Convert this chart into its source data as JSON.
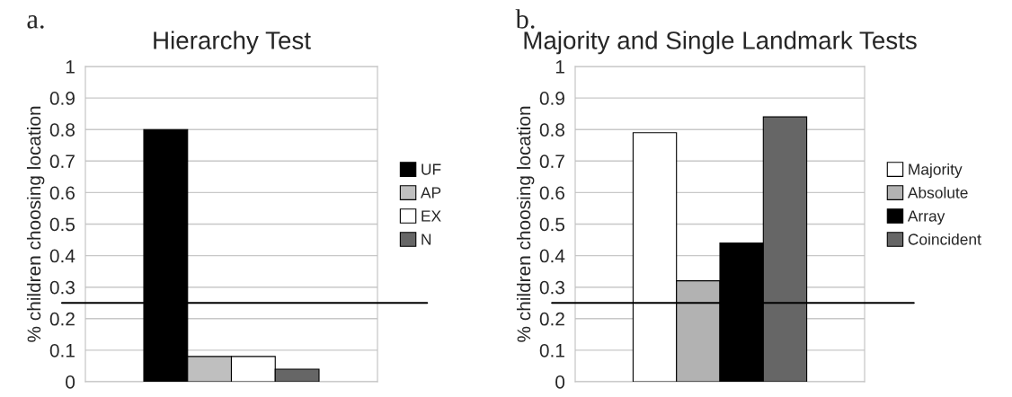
{
  "chart_data": [
    {
      "type": "bar",
      "title": "Hierarchy Test",
      "annotations": [
        "a."
      ],
      "ylabel": "% children choosing location",
      "categories": [
        null
      ],
      "series": [
        {
          "name": "UF",
          "color": "#000000",
          "values": [
            0.8
          ]
        },
        {
          "name": "AP",
          "color": "#bfbfbf",
          "values": [
            0.08
          ]
        },
        {
          "name": "EX",
          "color": "#ffffff",
          "values": [
            0.08
          ]
        },
        {
          "name": "N",
          "color": "#666666",
          "values": [
            0.04
          ]
        }
      ],
      "ylim": [
        0,
        1
      ],
      "yticks": [
        0,
        0.1,
        0.2,
        0.3,
        0.4,
        0.5,
        0.6,
        0.7,
        0.8,
        0.9,
        1
      ],
      "grid": "y",
      "legend": "right",
      "ref_lines": [
        {
          "axis": "y",
          "value": 0.25,
          "color": "#000000"
        }
      ]
    },
    {
      "type": "bar",
      "title": "Majority and Single Landmark Tests",
      "annotations": [
        "b."
      ],
      "ylabel": "% children choosing location",
      "categories": [
        null
      ],
      "series": [
        {
          "name": "Majority",
          "color": "#ffffff",
          "values": [
            0.79
          ]
        },
        {
          "name": "Absolute",
          "color": "#b2b2b2",
          "values": [
            0.32
          ]
        },
        {
          "name": "Array",
          "color": "#000000",
          "values": [
            0.44
          ]
        },
        {
          "name": "Coincident",
          "color": "#666666",
          "values": [
            0.84
          ]
        }
      ],
      "ylim": [
        0,
        1
      ],
      "yticks": [
        0,
        0.1,
        0.2,
        0.3,
        0.4,
        0.5,
        0.6,
        0.7,
        0.8,
        0.9,
        1
      ],
      "grid": "y",
      "legend": "right",
      "ref_lines": [
        {
          "axis": "y",
          "value": 0.25,
          "color": "#000000"
        }
      ]
    }
  ]
}
